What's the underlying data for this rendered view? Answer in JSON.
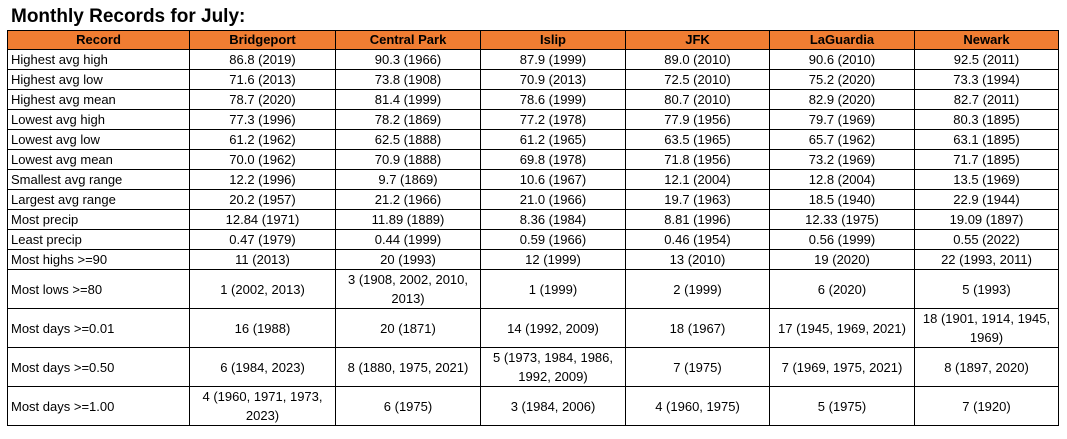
{
  "title": "Monthly Records for July:",
  "headers": [
    "Record",
    "Bridgeport",
    "Central Park",
    "Islip",
    "JFK",
    "LaGuardia",
    "Newark"
  ],
  "rows": [
    [
      "Highest avg high",
      "86.8 (2019)",
      "90.3 (1966)",
      "87.9 (1999)",
      "89.0 (2010)",
      "90.6 (2010)",
      "92.5 (2011)"
    ],
    [
      "Highest avg low",
      "71.6 (2013)",
      "73.8 (1908)",
      "70.9 (2013)",
      "72.5 (2010)",
      "75.2 (2020)",
      "73.3 (1994)"
    ],
    [
      "Highest avg mean",
      "78.7 (2020)",
      "81.4 (1999)",
      "78.6 (1999)",
      "80.7 (2010)",
      "82.9 (2020)",
      "82.7 (2011)"
    ],
    [
      "Lowest avg high",
      "77.3 (1996)",
      "78.2 (1869)",
      "77.2 (1978)",
      "77.9 (1956)",
      "79.7 (1969)",
      "80.3 (1895)"
    ],
    [
      "Lowest avg low",
      "61.2 (1962)",
      "62.5 (1888)",
      "61.2 (1965)",
      "63.5 (1965)",
      "65.7 (1962)",
      "63.1 (1895)"
    ],
    [
      "Lowest avg mean",
      "70.0 (1962)",
      "70.9 (1888)",
      "69.8 (1978)",
      "71.8 (1956)",
      "73.2 (1969)",
      "71.7 (1895)"
    ],
    [
      "Smallest avg range",
      "12.2 (1996)",
      "9.7 (1869)",
      "10.6 (1967)",
      "12.1 (2004)",
      "12.8 (2004)",
      "13.5 (1969)"
    ],
    [
      "Largest avg range",
      "20.2 (1957)",
      "21.2 (1966)",
      "21.0 (1966)",
      "19.7 (1963)",
      "18.5 (1940)",
      "22.9 (1944)"
    ],
    [
      "Most precip",
      "12.84 (1971)",
      "11.89 (1889)",
      "8.36 (1984)",
      "8.81 (1996)",
      "12.33 (1975)",
      "19.09 (1897)"
    ],
    [
      "Least precip",
      "0.47 (1979)",
      "0.44 (1999)",
      "0.59 (1966)",
      "0.46 (1954)",
      "0.56 (1999)",
      "0.55 (2022)"
    ],
    [
      "Most highs >=90",
      "11 (2013)",
      "20 (1993)",
      "12 (1999)",
      "13 (2010)",
      "19 (2020)",
      "22 (1993, 2011)"
    ],
    [
      "Most lows >=80",
      "1 (2002, 2013)",
      "3 (1908, 2002, 2010, 2013)",
      "1 (1999)",
      "2 (1999)",
      "6 (2020)",
      "5 (1993)"
    ],
    [
      "Most days >=0.01",
      "16 (1988)",
      "20 (1871)",
      "14 (1992, 2009)",
      "18 (1967)",
      "17 (1945, 1969, 2021)",
      "18 (1901, 1914, 1945, 1969)"
    ],
    [
      "Most days >=0.50",
      "6 (1984, 2023)",
      "8 (1880, 1975, 2021)",
      "5 (1973, 1984, 1986, 1992, 2009)",
      "7 (1975)",
      "7 (1969, 1975, 2021)",
      "8 (1897, 2020)"
    ],
    [
      "Most days >=1.00",
      "4 (1960, 1971, 1973, 2023)",
      "6 (1975)",
      "3 (1984, 2006)",
      "4 (1960, 1975)",
      "5 (1975)",
      "7 (1920)"
    ]
  ],
  "colors": {
    "header_bg": "#f07d32"
  }
}
